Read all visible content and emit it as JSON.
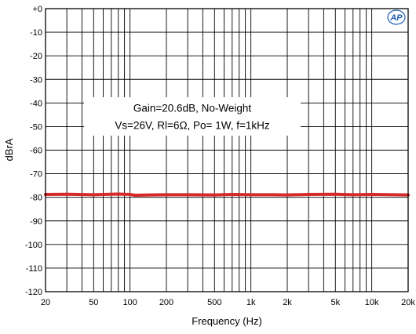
{
  "chart_data": {
    "type": "line",
    "title": "",
    "xlabel": "Frequency (Hz)",
    "ylabel": "dBrA",
    "x_scale": "log",
    "xlim": [
      20,
      20000
    ],
    "ylim": [
      -120,
      0
    ],
    "grid": true,
    "x_ticks": [
      20,
      50,
      100,
      200,
      500,
      1000,
      2000,
      5000,
      10000,
      20000
    ],
    "x_tick_labels": [
      "20",
      "50",
      "100",
      "200",
      "500",
      "1k",
      "2k",
      "5k",
      "10k",
      "20k"
    ],
    "y_ticks": [
      0,
      -10,
      -20,
      -30,
      -40,
      -50,
      -60,
      -70,
      -80,
      -90,
      -100,
      -110,
      -120
    ],
    "y_tick_labels": [
      "+0",
      "-10",
      "-20",
      "-30",
      "-40",
      "-50",
      "-60",
      "-70",
      "-80",
      "-90",
      "-100",
      "-110",
      "-120"
    ],
    "annotations": [
      "Gain=20.6dB, No-Weight",
      "Vs=26V, Rl=6Ω, Po= 1W, f=1kHz"
    ],
    "series": [
      {
        "color": "#d62a2a",
        "x": [
          20,
          30,
          50,
          80,
          100,
          110,
          150,
          200,
          300,
          500,
          700,
          1000,
          1500,
          2000,
          3000,
          5000,
          7000,
          10000,
          15000,
          20000
        ],
        "y": [
          -78.8,
          -78.7,
          -78.9,
          -78.6,
          -78.8,
          -79.1,
          -79.0,
          -78.9,
          -78.9,
          -79.0,
          -78.8,
          -78.9,
          -78.9,
          -79.0,
          -78.8,
          -78.7,
          -78.9,
          -78.8,
          -78.9,
          -79.0
        ]
      }
    ]
  },
  "logo": {
    "name": "audio-precision-logo",
    "text": "AP"
  }
}
